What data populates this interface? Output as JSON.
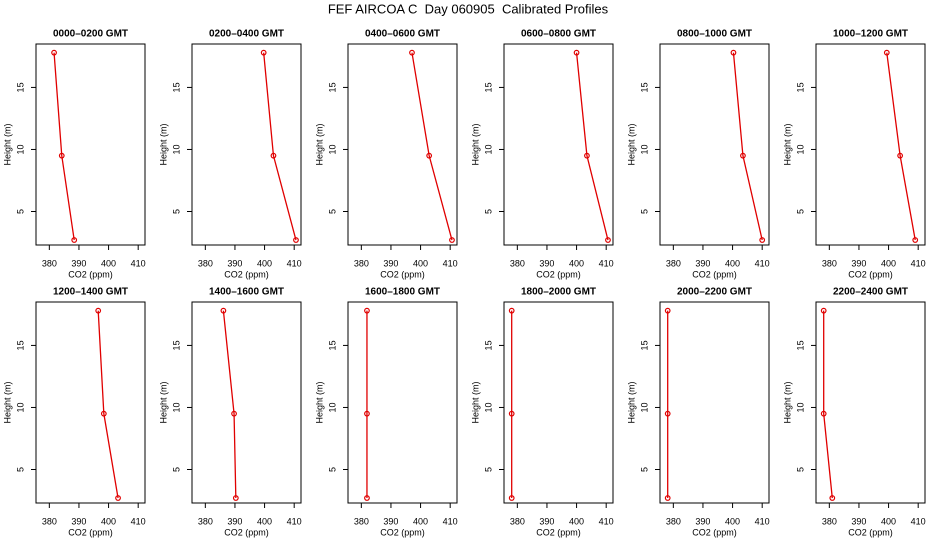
{
  "title": "FEF AIRCOA C  Day 060905  Calibrated Profiles",
  "chart_data": [
    {
      "type": "line",
      "title": "0000–0200 GMT",
      "x": [
        381.6,
        384.2,
        388.4
      ],
      "y": [
        17.8,
        9.5,
        2.7
      ],
      "color": "#e00000",
      "xlim": [
        375.5,
        412.3
      ],
      "ylim": [
        2.3,
        18.5
      ],
      "xticks": [
        380,
        390,
        400,
        410
      ],
      "yticks": [
        5,
        10,
        15
      ],
      "xlabel": "CO2 (ppm)",
      "ylabel": "Height (m)"
    },
    {
      "type": "line",
      "title": "0200–0400 GMT",
      "x": [
        399.7,
        403.0,
        410.6
      ],
      "y": [
        17.8,
        9.5,
        2.7
      ],
      "color": "#e00000",
      "xlim": [
        375.5,
        412.3
      ],
      "ylim": [
        2.3,
        18.5
      ],
      "xticks": [
        380,
        390,
        400,
        410
      ],
      "yticks": [
        5,
        10,
        15
      ],
      "xlabel": "CO2 (ppm)",
      "ylabel": "Height (m)"
    },
    {
      "type": "line",
      "title": "0400–0600 GMT",
      "x": [
        397.1,
        402.9,
        410.6
      ],
      "y": [
        17.8,
        9.5,
        2.7
      ],
      "color": "#e00000",
      "xlim": [
        375.5,
        412.3
      ],
      "ylim": [
        2.3,
        18.5
      ],
      "xticks": [
        380,
        390,
        400,
        410
      ],
      "yticks": [
        5,
        10,
        15
      ],
      "xlabel": "CO2 (ppm)",
      "ylabel": "Height (m)"
    },
    {
      "type": "line",
      "title": "0600–0800 GMT",
      "x": [
        400.0,
        403.5,
        410.6
      ],
      "y": [
        17.8,
        9.5,
        2.7
      ],
      "color": "#e00000",
      "xlim": [
        375.5,
        412.3
      ],
      "ylim": [
        2.3,
        18.5
      ],
      "xticks": [
        380,
        390,
        400,
        410
      ],
      "yticks": [
        5,
        10,
        15
      ],
      "xlabel": "CO2 (ppm)",
      "ylabel": "Height (m)"
    },
    {
      "type": "line",
      "title": "0800–1000 GMT",
      "x": [
        400.3,
        403.5,
        410.0
      ],
      "y": [
        17.8,
        9.5,
        2.7
      ],
      "color": "#e00000",
      "xlim": [
        375.5,
        412.3
      ],
      "ylim": [
        2.3,
        18.5
      ],
      "xticks": [
        380,
        390,
        400,
        410
      ],
      "yticks": [
        5,
        10,
        15
      ],
      "xlabel": "CO2 (ppm)",
      "ylabel": "Height (m)"
    },
    {
      "type": "line",
      "title": "1000–1200 GMT",
      "x": [
        399.4,
        403.9,
        409.0
      ],
      "y": [
        17.8,
        9.5,
        2.7
      ],
      "color": "#e00000",
      "xlim": [
        375.5,
        412.3
      ],
      "ylim": [
        2.3,
        18.5
      ],
      "xticks": [
        380,
        390,
        400,
        410
      ],
      "yticks": [
        5,
        10,
        15
      ],
      "xlabel": "CO2 (ppm)",
      "ylabel": "Height (m)"
    },
    {
      "type": "line",
      "title": "1200–1400 GMT",
      "x": [
        396.5,
        398.4,
        403.2
      ],
      "y": [
        17.8,
        9.5,
        2.7
      ],
      "color": "#e00000",
      "xlim": [
        375.5,
        412.3
      ],
      "ylim": [
        2.3,
        18.5
      ],
      "xticks": [
        380,
        390,
        400,
        410
      ],
      "yticks": [
        5,
        10,
        15
      ],
      "xlabel": "CO2 (ppm)",
      "ylabel": "Height (m)"
    },
    {
      "type": "line",
      "title": "1400–1600 GMT",
      "x": [
        386.1,
        389.7,
        390.3
      ],
      "y": [
        17.8,
        9.5,
        2.7
      ],
      "color": "#e00000",
      "xlim": [
        375.5,
        412.3
      ],
      "ylim": [
        2.3,
        18.5
      ],
      "xticks": [
        380,
        390,
        400,
        410
      ],
      "yticks": [
        5,
        10,
        15
      ],
      "xlabel": "CO2 (ppm)",
      "ylabel": "Height (m)"
    },
    {
      "type": "line",
      "title": "1600–1800 GMT",
      "x": [
        381.9,
        381.9,
        381.9
      ],
      "y": [
        17.8,
        9.5,
        2.7
      ],
      "color": "#e00000",
      "xlim": [
        375.5,
        412.3
      ],
      "ylim": [
        2.3,
        18.5
      ],
      "xticks": [
        380,
        390,
        400,
        410
      ],
      "yticks": [
        5,
        10,
        15
      ],
      "xlabel": "CO2 (ppm)",
      "ylabel": "Height (m)"
    },
    {
      "type": "line",
      "title": "1800–2000 GMT",
      "x": [
        378.1,
        378.1,
        378.1
      ],
      "y": [
        17.8,
        9.5,
        2.7
      ],
      "color": "#e00000",
      "xlim": [
        375.5,
        412.3
      ],
      "ylim": [
        2.3,
        18.5
      ],
      "xticks": [
        380,
        390,
        400,
        410
      ],
      "yticks": [
        5,
        10,
        15
      ],
      "xlabel": "CO2 (ppm)",
      "ylabel": "Height (m)"
    },
    {
      "type": "line",
      "title": "2000–2200 GMT",
      "x": [
        378.1,
        378.1,
        378.1
      ],
      "y": [
        17.8,
        9.5,
        2.7
      ],
      "color": "#e00000",
      "xlim": [
        375.5,
        412.3
      ],
      "ylim": [
        2.3,
        18.5
      ],
      "xticks": [
        380,
        390,
        400,
        410
      ],
      "yticks": [
        5,
        10,
        15
      ],
      "xlabel": "CO2 (ppm)",
      "ylabel": "Height (m)"
    },
    {
      "type": "line",
      "title": "2200–2400 GMT",
      "x": [
        378.1,
        378.1,
        381.0
      ],
      "y": [
        17.8,
        9.5,
        2.7
      ],
      "color": "#e00000",
      "xlim": [
        375.5,
        412.3
      ],
      "ylim": [
        2.3,
        18.5
      ],
      "xticks": [
        380,
        390,
        400,
        410
      ],
      "yticks": [
        5,
        10,
        15
      ],
      "xlabel": "CO2 (ppm)",
      "ylabel": "Height (m)"
    }
  ]
}
